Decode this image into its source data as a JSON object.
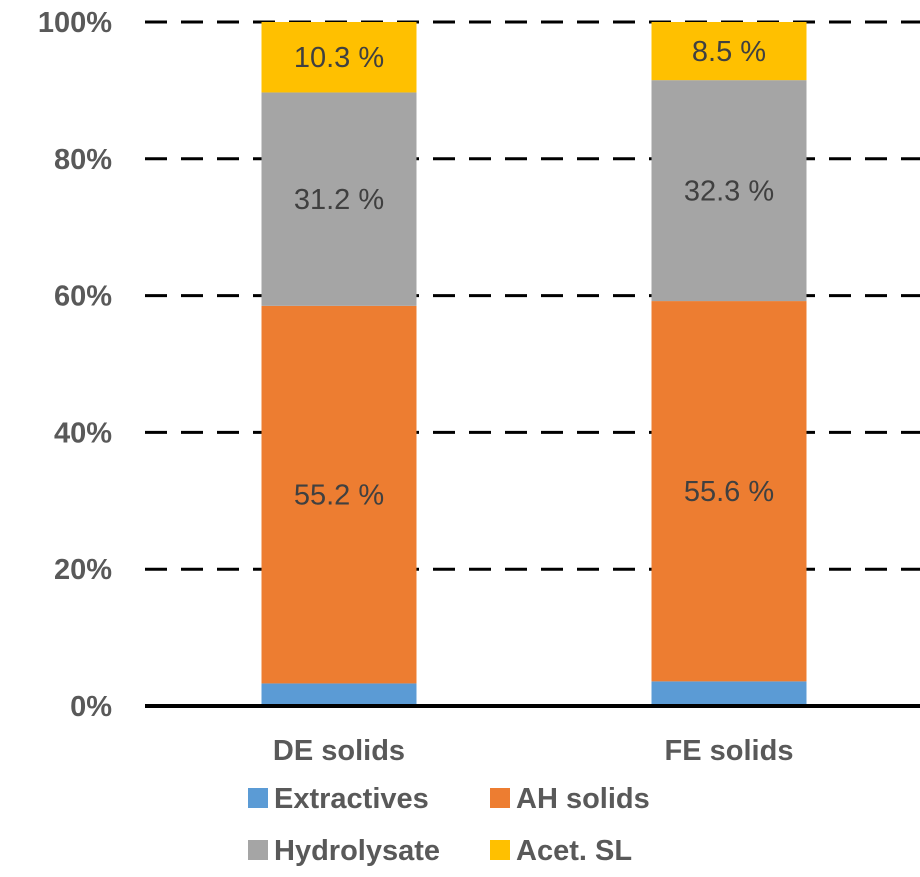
{
  "chart_data": {
    "type": "bar",
    "stacked": true,
    "normalized": true,
    "categories": [
      "DE solids",
      "FE solids"
    ],
    "series": [
      {
        "name": "Extractives",
        "color": "#5B9BD5",
        "values": [
          3.3,
          3.6
        ],
        "labels": [
          "",
          ""
        ]
      },
      {
        "name": "AH solids",
        "color": "#ED7D31",
        "values": [
          55.2,
          55.6
        ],
        "labels": [
          "55.2 %",
          "55.6 %"
        ]
      },
      {
        "name": "Hydrolysate",
        "color": "#A5A5A5",
        "values": [
          31.2,
          32.3
        ],
        "labels": [
          "31.2 %",
          "32.3 %"
        ]
      },
      {
        "name": "Acet. SL",
        "color": "#FFC000",
        "values": [
          10.3,
          8.5
        ],
        "labels": [
          "10.3 %",
          "8.5 %"
        ]
      }
    ],
    "ylim": [
      0,
      100
    ],
    "yticks": [
      "0%",
      "20%",
      "40%",
      "60%",
      "80%",
      "100%"
    ],
    "grid": "horizontal-dashed",
    "legend": "bottom",
    "title": "",
    "xlabel": "",
    "ylabel": ""
  }
}
